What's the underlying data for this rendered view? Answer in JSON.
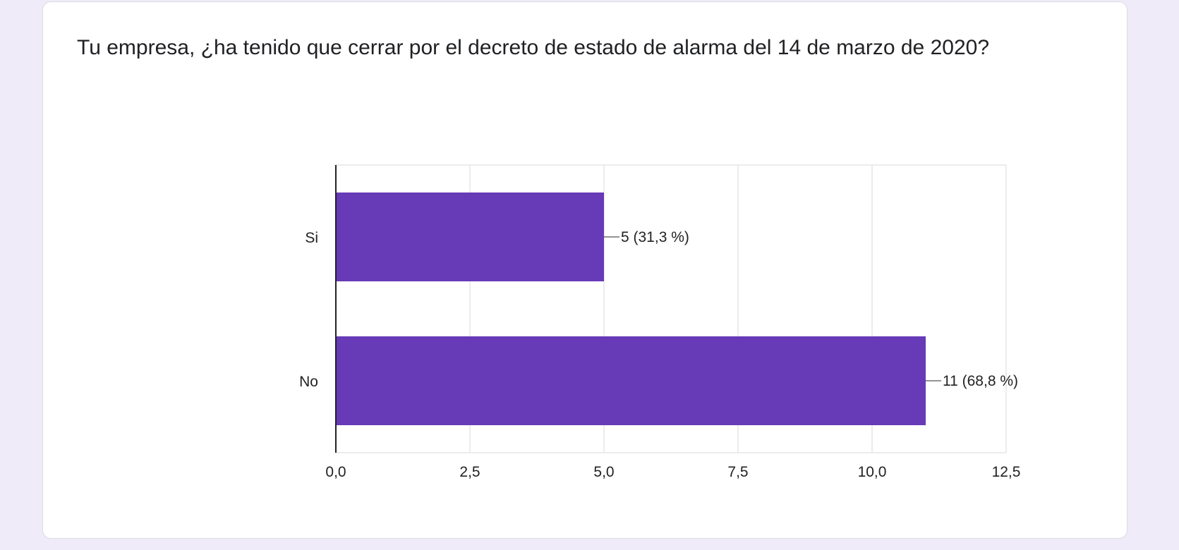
{
  "question": {
    "title": "Tu empresa, ¿ha tenido que cerrar por el decreto de estado de alarma del 14 de marzo de 2020?"
  },
  "colors": {
    "bar": "#673ab7",
    "grid": "#e6e6e6",
    "axis": "#222222",
    "page_background": "#f0ebf8"
  },
  "chart_data": {
    "type": "bar",
    "orientation": "horizontal",
    "categories": [
      "Si",
      "No"
    ],
    "values": [
      5,
      11
    ],
    "data_labels": [
      "5 (31,3 %)",
      "11 (68,8 %)"
    ],
    "xlim": [
      0,
      12.5
    ],
    "x_ticks": [
      0,
      2.5,
      5,
      7.5,
      10,
      12.5
    ],
    "x_tick_labels": [
      "0,0",
      "2,5",
      "5,0",
      "7,5",
      "10,0",
      "12,5"
    ],
    "grid": true,
    "legend": "none",
    "title": "",
    "xlabel": "",
    "ylabel": ""
  }
}
